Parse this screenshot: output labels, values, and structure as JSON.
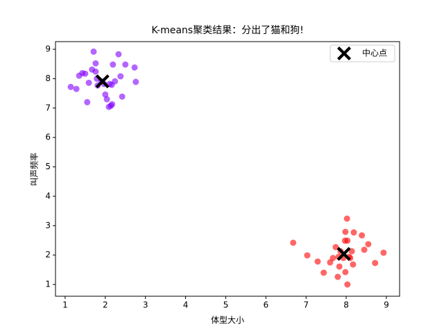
{
  "chart_data": {
    "type": "scatter",
    "title": "K-means聚类结果：分出了猫和狗!",
    "xlabel": "体型大小",
    "ylabel": "叫声频率",
    "xlim": [
      0.76,
      9.33
    ],
    "ylim": [
      0.6,
      9.26
    ],
    "xticks": [
      1,
      2,
      3,
      4,
      5,
      6,
      7,
      8,
      9
    ],
    "yticks": [
      1,
      2,
      3,
      4,
      5,
      6,
      7,
      8,
      9
    ],
    "legend_loc": "upper right",
    "series": [
      {
        "color": "#8000ff",
        "alpha": 0.6,
        "x": [
          1.71,
          2.33,
          1.14,
          1.28,
          1.35,
          1.43,
          1.5,
          1.55,
          1.59,
          1.67,
          1.76,
          1.79,
          1.76,
          1.81,
          1.9,
          1.97,
          2.0,
          2.04,
          2.09,
          2.14,
          2.17,
          2.11,
          2.16,
          2.19,
          2.24,
          2.38,
          2.42,
          2.5,
          2.73,
          2.76
        ],
        "values": [
          8.92,
          8.83,
          7.72,
          7.65,
          8.1,
          8.19,
          8.17,
          7.2,
          7.86,
          8.31,
          8.52,
          8.0,
          8.24,
          7.77,
          7.91,
          7.82,
          7.46,
          7.3,
          7.04,
          7.08,
          7.13,
          7.82,
          7.79,
          8.48,
          7.91,
          8.08,
          7.39,
          8.48,
          8.38,
          7.89
        ]
      },
      {
        "color": "#ff0000",
        "alpha": 0.6,
        "x": [
          6.68,
          7.03,
          7.29,
          7.44,
          7.6,
          7.67,
          7.74,
          7.79,
          7.83,
          7.86,
          7.93,
          7.97,
          7.98,
          8.02,
          8.03,
          7.98,
          8.03,
          8.07,
          8.14,
          8.17,
          8.19,
          8.39,
          8.45,
          8.55,
          8.72,
          8.93,
          7.81,
          8.1
        ],
        "values": [
          2.42,
          1.99,
          1.78,
          1.4,
          1.75,
          1.9,
          2.27,
          1.26,
          1.61,
          2.13,
          1.9,
          2.49,
          2.79,
          3.24,
          2.49,
          1.42,
          1.0,
          1.94,
          2.13,
          1.68,
          2.77,
          2.67,
          2.18,
          2.37,
          1.73,
          2.08,
          1.94,
          1.9
        ]
      },
      {
        "name": "中心点",
        "color": "#000000",
        "marker": "X",
        "x": [
          1.93,
          7.94
        ],
        "values": [
          7.91,
          2.04
        ]
      }
    ]
  }
}
